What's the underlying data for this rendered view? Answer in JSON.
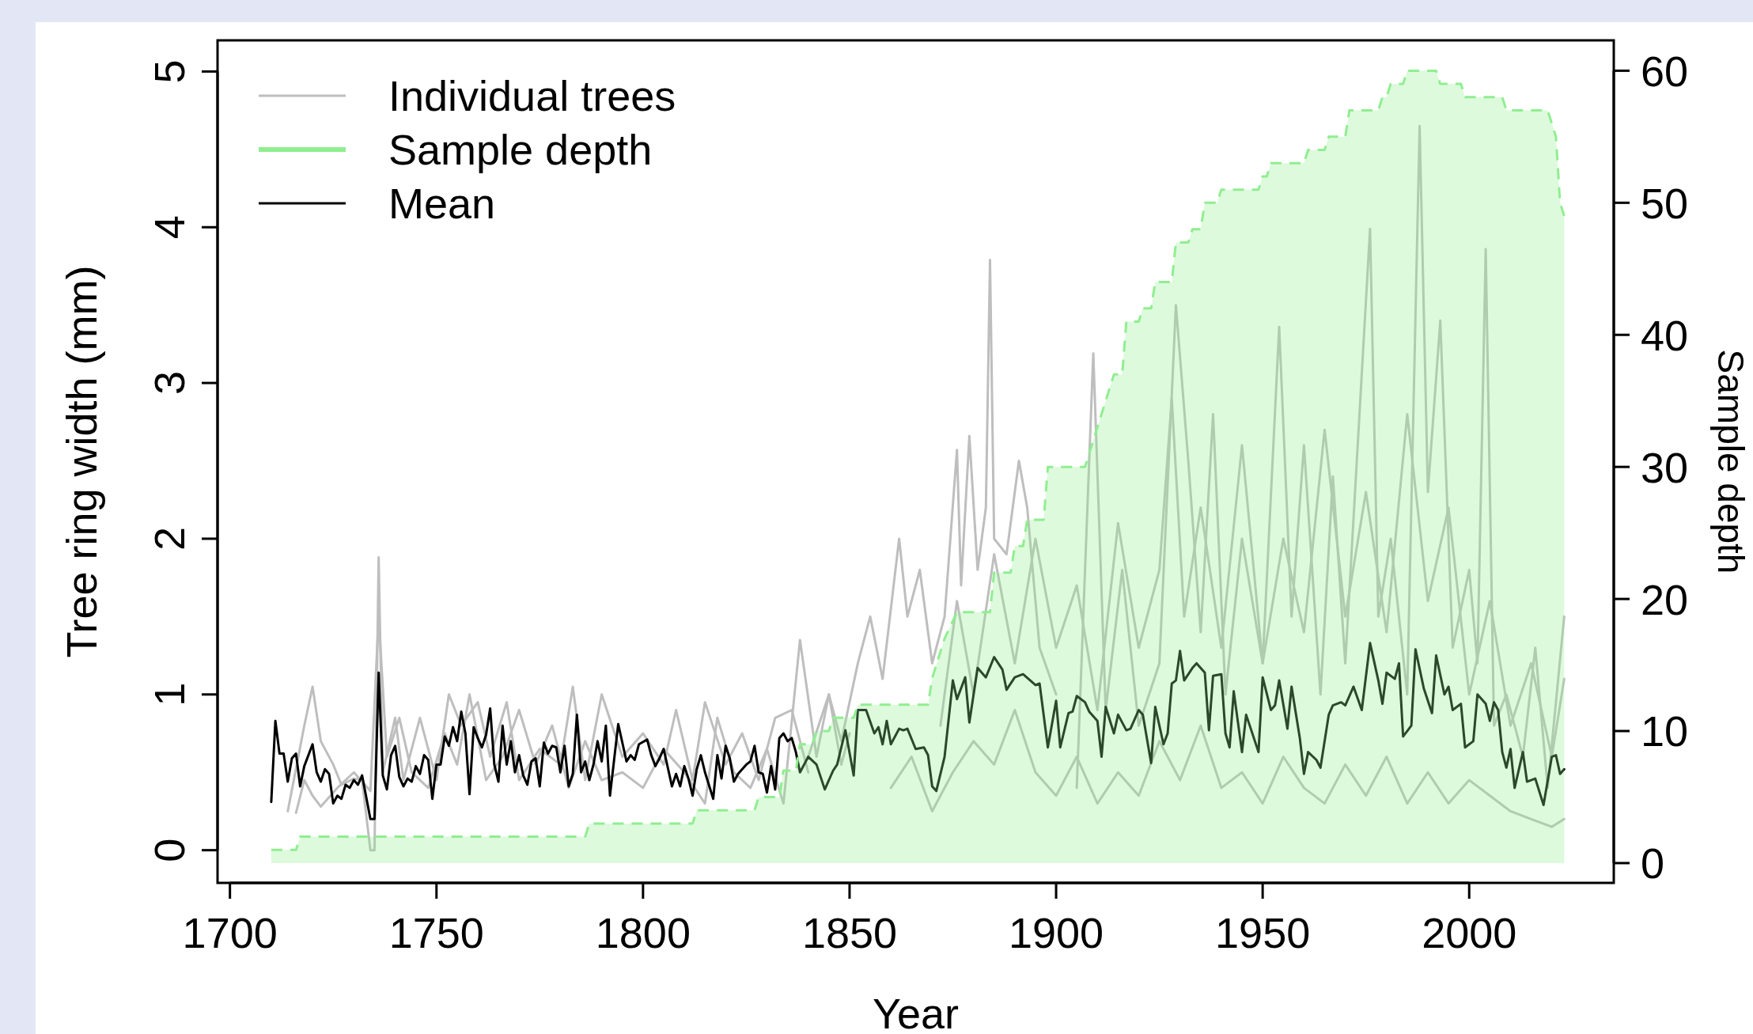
{
  "chart_data": {
    "type": "line",
    "xlabel": "Year",
    "ylabel": "Tree ring width (mm)",
    "y2label": "Sample depth",
    "legend": "top left",
    "xlim": [
      1697,
      2035
    ],
    "xticks": [
      1700,
      1750,
      1800,
      1850,
      1900,
      1950,
      2000
    ],
    "ylim": [
      -0.21,
      5.2
    ],
    "yticks": [
      0,
      1,
      2,
      3,
      4,
      5
    ],
    "y2lim": [
      -1.5,
      62.3
    ],
    "y2ticks": [
      0,
      10,
      20,
      30,
      40,
      50,
      60
    ],
    "series": [
      {
        "name": "Individual trees",
        "color": "#bebebe",
        "x": [
          1714,
          1718,
          1720,
          1722,
          1725,
          1727,
          1730,
          1732,
          1734,
          1735,
          1736,
          1737,
          1740,
          1742,
          1746,
          1750,
          1753,
          1756,
          1760,
          1763,
          1767,
          1770,
          1775,
          1780,
          1783,
          1786,
          1790,
          1795,
          1800,
          1805,
          1808,
          1812,
          1815,
          1820,
          1824,
          1828,
          1832,
          1836,
          1840
        ],
        "values": [
          0.25,
          0.8,
          1.05,
          0.7,
          0.55,
          0.42,
          0.46,
          0.45,
          0,
          0,
          1.88,
          0.5,
          0.85,
          0.45,
          0.85,
          0.45,
          1.0,
          0.8,
          0.95,
          0.6,
          0.95,
          0.45,
          0.65,
          0.55,
          1.05,
          0.45,
          1.0,
          0.6,
          0.75,
          0.55,
          0.9,
          0.45,
          0.95,
          0.55,
          0.75,
          0.45,
          0.85,
          0.9,
          0.5
        ]
      },
      {
        "color": "#bebebe",
        "x": [
          1716,
          1718,
          1720,
          1722,
          1726,
          1730,
          1734,
          1736,
          1738,
          1741,
          1744,
          1748,
          1752,
          1755,
          1758,
          1762,
          1766,
          1770,
          1774,
          1778,
          1782,
          1786,
          1790,
          1795,
          1800,
          1805,
          1810,
          1815,
          1818,
          1822,
          1826,
          1830,
          1834,
          1838,
          1842,
          1845,
          1848,
          1850
        ],
        "values": [
          0.24,
          0.45,
          0.35,
          0.28,
          0.4,
          0.5,
          0.38,
          1.5,
          0.6,
          0.85,
          0.5,
          0.4,
          0.75,
          0.55,
          1.0,
          0.45,
          0.6,
          0.9,
          0.55,
          0.8,
          0.4,
          0.7,
          0.45,
          0.5,
          0.4,
          0.65,
          0.5,
          0.3,
          0.85,
          0.5,
          0.4,
          0.65,
          0.3,
          1.35,
          0.6,
          1.0,
          0.55,
          0.75
        ]
      },
      {
        "color": "#bebebe",
        "x": [
          1840,
          1845,
          1848,
          1852,
          1855,
          1858,
          1862,
          1864,
          1867,
          1870,
          1873,
          1876,
          1877,
          1879,
          1881,
          1883,
          1884,
          1885,
          1888,
          1891,
          1893,
          1896,
          1900
        ],
        "values": [
          0.6,
          1.0,
          0.7,
          1.2,
          1.5,
          1.1,
          2.0,
          1.5,
          1.8,
          1.2,
          1.5,
          2.57,
          1.7,
          2.66,
          1.8,
          2.2,
          3.79,
          2.0,
          1.9,
          2.5,
          2.2,
          1.3,
          1.0
        ]
      },
      {
        "color": "#bebebe",
        "x": [
          1905,
          1909,
          1912,
          1916,
          1920,
          1925,
          1929,
          1932,
          1935,
          1938,
          1941,
          1945,
          1950,
          1954,
          1957,
          1960,
          1964,
          1967,
          1970,
          1976,
          1978,
          1981,
          1985,
          1988,
          1990,
          1993,
          1996,
          2000,
          2002,
          2004,
          2006,
          2009,
          2013,
          2016,
          2019,
          2023
        ],
        "values": [
          0.4,
          3.19,
          0.9,
          1.8,
          0.8,
          1.2,
          3.5,
          2.5,
          1.4,
          2.8,
          1.0,
          2.0,
          1.2,
          3.36,
          1.5,
          2.6,
          1.0,
          2.4,
          1.2,
          3.99,
          1.5,
          2.0,
          1.0,
          4.65,
          2.3,
          3.4,
          1.3,
          1.8,
          1.2,
          3.86,
          0.8,
          1.0,
          0.6,
          1.3,
          0.4,
          1.5
        ]
      },
      {
        "color": "#bebebe",
        "x": [
          1860,
          1865,
          1870,
          1875,
          1880,
          1885,
          1890,
          1895,
          1900,
          1905,
          1910,
          1915,
          1920,
          1925,
          1930,
          1935,
          1940,
          1945,
          1950,
          1955,
          1960,
          1965,
          1970,
          1975,
          1980,
          1985,
          1990,
          1995,
          2000,
          2005,
          2010,
          2015,
          2020,
          2023
        ],
        "values": [
          0.4,
          0.6,
          0.25,
          0.5,
          0.7,
          0.55,
          0.9,
          0.5,
          0.35,
          0.6,
          0.3,
          0.5,
          0.35,
          0.7,
          0.45,
          0.8,
          0.4,
          0.5,
          0.3,
          0.6,
          0.4,
          0.3,
          0.55,
          0.35,
          0.6,
          0.3,
          0.5,
          0.3,
          0.45,
          0.35,
          0.25,
          0.2,
          0.15,
          0.2
        ]
      },
      {
        "color": "#bebebe",
        "x": [
          1872,
          1876,
          1880,
          1885,
          1890,
          1895,
          1900,
          1905,
          1910,
          1915,
          1920,
          1925,
          1928,
          1931,
          1935,
          1940,
          1945,
          1950,
          1955,
          1960,
          1965,
          1970,
          1975,
          1980,
          1985,
          1990,
          1995,
          2000,
          2005,
          2010,
          2015,
          2020,
          2023
        ],
        "values": [
          0.8,
          1.6,
          1.0,
          1.9,
          1.2,
          2.0,
          1.3,
          1.7,
          0.9,
          2.1,
          1.3,
          1.8,
          2.9,
          1.5,
          2.2,
          1.3,
          2.6,
          1.2,
          2.0,
          1.4,
          2.7,
          1.5,
          2.3,
          1.4,
          2.8,
          1.6,
          2.2,
          1.0,
          1.6,
          0.8,
          1.2,
          0.6,
          1.1
        ]
      },
      {
        "name": "Sample depth",
        "type": "area",
        "axis": "y2",
        "line_style": "dashed",
        "color": "#90ee90",
        "x": [
          1710,
          1716,
          1717,
          1786,
          1787,
          1812,
          1813,
          1827,
          1828,
          1833,
          1834,
          1837,
          1838,
          1841,
          1842,
          1845,
          1846,
          1851,
          1852,
          1869,
          1870,
          1873,
          1876,
          1884,
          1885,
          1889,
          1890,
          1892,
          1893,
          1897,
          1898,
          1907,
          1908,
          1910,
          1912,
          1914,
          1916,
          1917,
          1920,
          1921,
          1923,
          1924,
          1928,
          1929,
          1932,
          1933,
          1935,
          1936,
          1939,
          1940,
          1949,
          1950,
          1951,
          1952,
          1960,
          1961,
          1965,
          1966,
          1970,
          1971,
          1978,
          1979,
          1980,
          1981,
          1984,
          1985,
          1992,
          1993,
          1998,
          1999,
          2008,
          2009,
          2019,
          2020,
          2021,
          2022,
          2023
        ],
        "values": [
          1,
          1,
          2,
          2,
          3,
          3,
          4,
          4,
          5,
          5,
          7,
          7,
          9,
          9,
          10,
          10,
          11,
          11,
          12,
          12,
          14,
          17,
          19,
          19,
          22,
          22,
          24,
          24,
          26,
          26,
          30,
          30,
          31,
          33,
          35,
          37,
          37,
          41,
          41,
          42,
          42,
          44,
          44,
          47,
          47,
          48,
          48,
          50,
          50,
          51,
          51,
          52,
          52,
          53,
          53,
          54,
          54,
          55,
          55,
          57,
          57,
          58,
          58,
          59,
          59,
          60,
          60,
          59,
          59,
          58,
          58,
          57,
          57,
          56,
          55,
          50,
          49
        ]
      },
      {
        "name": "Mean",
        "color": "#000000",
        "x": [
          1710,
          1711,
          1712,
          1713,
          1714,
          1715,
          1716,
          1717,
          1718,
          1720,
          1721,
          1722,
          1723,
          1724,
          1725,
          1726,
          1727,
          1728,
          1729,
          1730,
          1731,
          1732,
          1734,
          1735,
          1736,
          1737,
          1738,
          1739,
          1740,
          1741,
          1742,
          1743,
          1744,
          1745,
          1746,
          1747,
          1748,
          1749,
          1750,
          1751,
          1752,
          1753,
          1754,
          1755,
          1756,
          1757,
          1758,
          1759,
          1760,
          1761,
          1762,
          1763,
          1764,
          1765,
          1766,
          1767,
          1768,
          1769,
          1770,
          1771,
          1772,
          1773,
          1774,
          1775,
          1776,
          1777,
          1778,
          1779,
          1780,
          1781,
          1782,
          1783,
          1784,
          1785,
          1786,
          1787,
          1788,
          1789,
          1790,
          1791,
          1792,
          1793,
          1794,
          1796,
          1797,
          1798,
          1799,
          1801,
          1802,
          1803,
          1804,
          1805,
          1807,
          1808,
          1809,
          1810,
          1811,
          1812,
          1813,
          1814,
          1815,
          1817,
          1818,
          1819,
          1820,
          1821,
          1822,
          1823,
          1825,
          1826,
          1827,
          1828,
          1829,
          1830,
          1831,
          1832,
          1833,
          1834,
          1835,
          1836,
          1837,
          1838,
          1840,
          1842,
          1844,
          1846,
          1847,
          1849,
          1851,
          1852,
          1854,
          1856,
          1857,
          1858,
          1859,
          1860,
          1862,
          1863,
          1864,
          1866,
          1868,
          1869,
          1870,
          1871,
          1873,
          1875,
          1876,
          1878,
          1879,
          1881,
          1883,
          1885,
          1887,
          1888,
          1890,
          1892,
          1895,
          1896,
          1898,
          1900,
          1901,
          1903,
          1904,
          1905,
          1907,
          1908,
          1910,
          1911,
          1912,
          1914,
          1915,
          1917,
          1918,
          1920,
          1921,
          1923,
          1924,
          1926,
          1927,
          1928,
          1929,
          1930,
          1931,
          1933,
          1934,
          1936,
          1937,
          1938,
          1940,
          1941,
          1942,
          1943,
          1945,
          1946,
          1949,
          1950,
          1952,
          1953,
          1954,
          1956,
          1957,
          1959,
          1960,
          1961,
          1963,
          1964,
          1966,
          1967,
          1969,
          1970,
          1972,
          1974,
          1976,
          1978,
          1979,
          1980,
          1982,
          1983,
          1984,
          1986,
          1987,
          1989,
          1991,
          1992,
          1994,
          1995,
          1996,
          1998,
          1999,
          2001,
          2002,
          2004,
          2005,
          2006,
          2007,
          2008,
          2009,
          2010,
          2011,
          2013,
          2014,
          2016,
          2018,
          2020,
          2021,
          2022,
          2023
        ],
        "values": [
          0.31,
          0.83,
          0.62,
          0.62,
          0.44,
          0.59,
          0.62,
          0.41,
          0.54,
          0.68,
          0.5,
          0.44,
          0.52,
          0.49,
          0.3,
          0.35,
          0.33,
          0.42,
          0.4,
          0.45,
          0.42,
          0.48,
          0.2,
          0.2,
          1.14,
          0.48,
          0.39,
          0.61,
          0.67,
          0.47,
          0.41,
          0.46,
          0.44,
          0.54,
          0.49,
          0.61,
          0.58,
          0.33,
          0.55,
          0.55,
          0.73,
          0.67,
          0.79,
          0.7,
          0.89,
          0.75,
          0.36,
          0.79,
          0.72,
          0.66,
          0.74,
          0.91,
          0.55,
          0.44,
          0.8,
          0.55,
          0.7,
          0.5,
          0.61,
          0.48,
          0.42,
          0.57,
          0.59,
          0.41,
          0.69,
          0.62,
          0.67,
          0.66,
          0.5,
          0.67,
          0.41,
          0.49,
          0.87,
          0.5,
          0.57,
          0.45,
          0.55,
          0.7,
          0.57,
          0.8,
          0.35,
          0.58,
          0.81,
          0.57,
          0.61,
          0.58,
          0.68,
          0.71,
          0.61,
          0.54,
          0.59,
          0.65,
          0.41,
          0.49,
          0.41,
          0.54,
          0.46,
          0.35,
          0.52,
          0.61,
          0.5,
          0.33,
          0.61,
          0.46,
          0.67,
          0.59,
          0.44,
          0.49,
          0.55,
          0.57,
          0.67,
          0.5,
          0.49,
          0.37,
          0.54,
          0.39,
          0.72,
          0.75,
          0.7,
          0.72,
          0.63,
          0.5,
          0.6,
          0.55,
          0.39,
          0.51,
          0.55,
          0.77,
          0.48,
          0.9,
          0.9,
          0.75,
          0.79,
          0.68,
          0.83,
          0.68,
          0.78,
          0.77,
          0.78,
          0.65,
          0.66,
          0.61,
          0.41,
          0.38,
          0.6,
          1.09,
          0.97,
          1.11,
          0.82,
          1.17,
          1.11,
          1.24,
          1.16,
          1.03,
          1.11,
          1.13,
          1.06,
          1.07,
          0.66,
          0.96,
          0.66,
          0.88,
          0.89,
          0.99,
          0.95,
          0.89,
          0.83,
          0.6,
          0.92,
          0.75,
          0.87,
          0.77,
          0.78,
          0.9,
          0.87,
          0.56,
          0.92,
          0.68,
          0.75,
          1.07,
          1.09,
          1.28,
          1.09,
          1.17,
          1.2,
          1.14,
          0.77,
          1.12,
          1.13,
          0.75,
          0.66,
          1.02,
          0.63,
          0.87,
          0.63,
          1.11,
          0.9,
          0.93,
          1.09,
          0.78,
          1.05,
          0.72,
          0.49,
          0.63,
          0.58,
          0.53,
          0.87,
          0.93,
          0.95,
          0.93,
          1.05,
          0.9,
          1.33,
          1.09,
          0.94,
          1.14,
          1.1,
          1.2,
          0.73,
          0.8,
          1.29,
          1.04,
          0.88,
          1.25,
          1.0,
          1.05,
          0.9,
          0.94,
          0.66,
          0.7,
          1.0,
          0.94,
          0.83,
          0.95,
          0.9,
          0.63,
          0.53,
          0.65,
          0.4,
          0.63,
          0.44,
          0.46,
          0.29,
          0.6,
          0.61,
          0.49,
          0.52
        ]
      }
    ]
  }
}
